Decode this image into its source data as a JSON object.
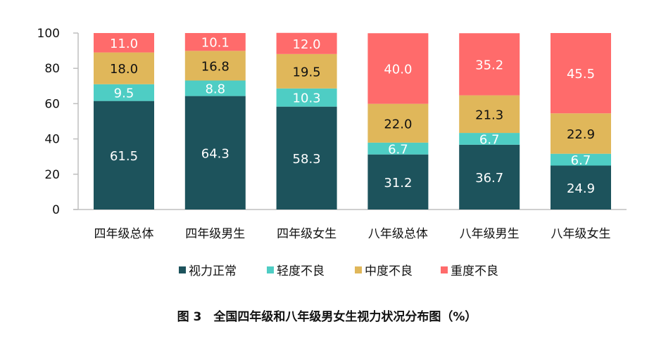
{
  "chart_data": {
    "type": "bar",
    "stacked": true,
    "title": "图 3　全国四年级和八年级男女生视力状况分布图（%）",
    "xlabel": "",
    "ylabel": "",
    "ylim": [
      0,
      100
    ],
    "yticks": [
      0,
      20,
      40,
      60,
      80,
      100
    ],
    "grid": false,
    "legend_position": "bottom",
    "categories": [
      "四年级总体",
      "四年级男生",
      "四年级女生",
      "八年级总体",
      "八年级男生",
      "八年级女生"
    ],
    "series": [
      {
        "name": "视力正常",
        "color": "#1d535c",
        "label_color": "#ffffff",
        "values": [
          61.5,
          64.3,
          58.3,
          31.2,
          36.7,
          24.9
        ]
      },
      {
        "name": "轻度不良",
        "color": "#4ecdc4",
        "label_color": "#ffffff",
        "values": [
          9.5,
          8.8,
          10.3,
          6.7,
          6.7,
          6.7
        ]
      },
      {
        "name": "中度不良",
        "color": "#e0b75a",
        "label_color": "#111111",
        "values": [
          18.0,
          16.8,
          19.5,
          22.0,
          21.3,
          22.9
        ]
      },
      {
        "name": "重度不良",
        "color": "#ff6b6b",
        "label_color": "#ffffff",
        "values": [
          11.0,
          10.1,
          12.0,
          40.0,
          35.2,
          45.5
        ]
      }
    ]
  }
}
